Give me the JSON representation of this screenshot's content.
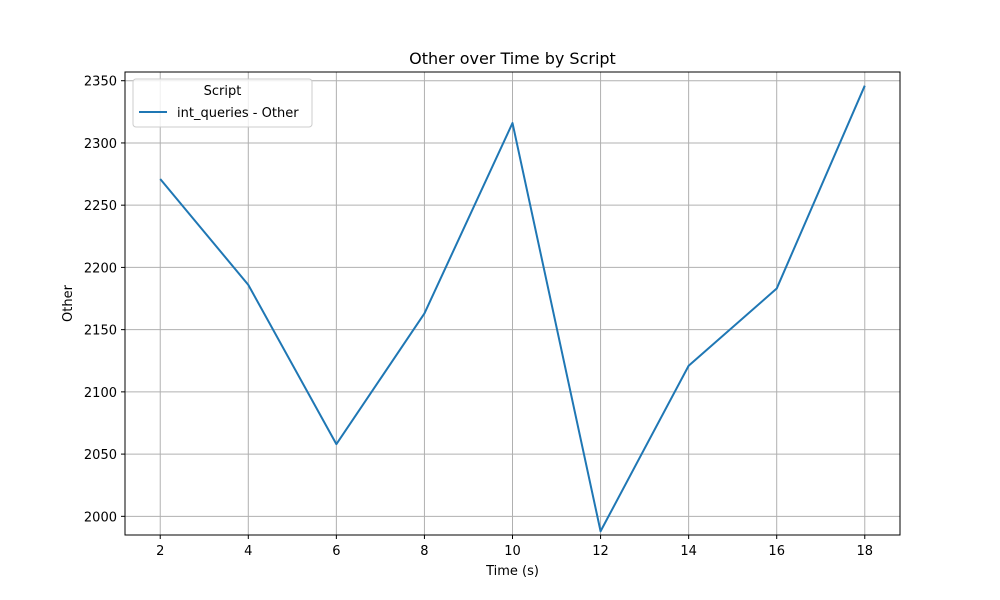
{
  "chart_data": {
    "type": "line",
    "title": "Other over Time by Script",
    "xlabel": "Time (s)",
    "ylabel": "Other",
    "x": [
      2,
      4,
      6,
      8,
      10,
      12,
      14,
      16,
      18
    ],
    "xticks": [
      2,
      4,
      6,
      8,
      10,
      12,
      14,
      16,
      18
    ],
    "yticks": [
      2000,
      2050,
      2100,
      2150,
      2200,
      2250,
      2300,
      2350
    ],
    "xlim": [
      1.2,
      18.8
    ],
    "ylim": [
      1985,
      2357
    ],
    "grid": true,
    "legend": {
      "title": "Script",
      "placement": "top-left"
    },
    "series": [
      {
        "name": "int_queries - Other",
        "color": "#1f77b4",
        "values": [
          2271,
          2186,
          2058,
          2163,
          2316,
          1988,
          2121,
          2183,
          2346
        ]
      }
    ]
  }
}
